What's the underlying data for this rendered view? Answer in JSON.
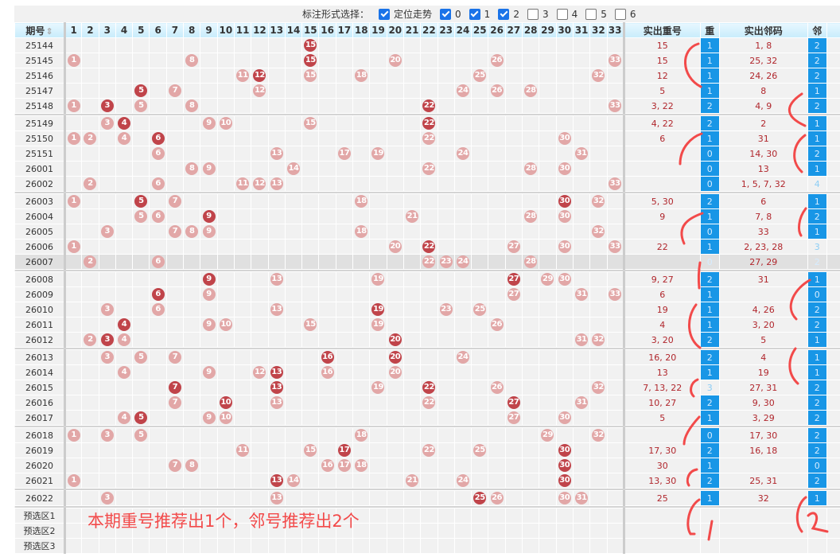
{
  "toolbar": {
    "label": "标注形式选择：",
    "options": [
      {
        "label": "定位走势",
        "checked": true
      },
      {
        "label": "0",
        "checked": true
      },
      {
        "label": "1",
        "checked": true
      },
      {
        "label": "2",
        "checked": true
      },
      {
        "label": "3",
        "checked": false
      },
      {
        "label": "4",
        "checked": false
      },
      {
        "label": "5",
        "checked": false
      },
      {
        "label": "6",
        "checked": false
      }
    ]
  },
  "header": {
    "period": "期号",
    "sort_icon": "sort-updown-icon",
    "numbers": [
      "1",
      "2",
      "3",
      "4",
      "5",
      "6",
      "7",
      "8",
      "9",
      "10",
      "11",
      "12",
      "13",
      "14",
      "15",
      "16",
      "17",
      "18",
      "19",
      "20",
      "21",
      "22",
      "23",
      "24",
      "25",
      "26",
      "27",
      "28",
      "29",
      "30",
      "31",
      "32",
      "33"
    ],
    "repeat_nums": "实出重号",
    "repeat_count": "重",
    "neighbor_nums": "实出邻码",
    "neighbor_count": "邻"
  },
  "groups": [
    [
      {
        "period": "25144",
        "balls": [
          15
        ],
        "dark": [
          15
        ],
        "repeat": "15",
        "rc": "1",
        "neighbor": "1, 8",
        "nc": "2"
      },
      {
        "period": "25145",
        "balls": [
          1,
          8,
          15,
          20,
          26,
          33
        ],
        "dark": [
          15
        ],
        "repeat": "15",
        "rc": "1",
        "neighbor": "25, 32",
        "nc": "2"
      },
      {
        "period": "25146",
        "balls": [
          11,
          12,
          15,
          18,
          25,
          32
        ],
        "dark": [
          12
        ],
        "repeat": "12",
        "rc": "1",
        "neighbor": "24, 26",
        "nc": "2"
      },
      {
        "period": "25147",
        "balls": [
          5,
          7,
          12,
          24,
          26,
          28
        ],
        "dark": [
          5
        ],
        "repeat": "5",
        "rc": "1",
        "neighbor": "8",
        "nc": "1"
      },
      {
        "period": "25148",
        "balls": [
          1,
          3,
          5,
          8,
          22,
          33
        ],
        "dark": [
          3,
          22
        ],
        "repeat": "3, 22",
        "rc": "2",
        "neighbor": "4, 9",
        "nc": "2"
      }
    ],
    [
      {
        "period": "25149",
        "balls": [
          3,
          4,
          9,
          10,
          15,
          22
        ],
        "dark": [
          4,
          22
        ],
        "repeat": "4, 22",
        "rc": "2",
        "neighbor": "2",
        "nc": "1"
      },
      {
        "period": "25150",
        "balls": [
          1,
          2,
          4,
          6,
          22,
          30
        ],
        "dark": [
          6
        ],
        "repeat": "6",
        "rc": "1",
        "neighbor": "31",
        "nc": "1"
      },
      {
        "period": "25151",
        "balls": [
          6,
          13,
          17,
          19,
          24,
          31
        ],
        "dark": [],
        "repeat": "",
        "rc": "0",
        "neighbor": "14, 30",
        "nc": "2"
      },
      {
        "period": "26001",
        "balls": [
          8,
          9,
          14,
          22,
          28,
          30
        ],
        "dark": [],
        "repeat": "",
        "rc": "0",
        "neighbor": "13",
        "nc": "1"
      },
      {
        "period": "26002",
        "balls": [
          2,
          6,
          11,
          12,
          13,
          33
        ],
        "dark": [],
        "repeat": "",
        "rc": "0",
        "neighbor": "1, 5, 7, 32",
        "nc": "4",
        "nc_pale": true
      }
    ],
    [
      {
        "period": "26003",
        "balls": [
          1,
          5,
          7,
          18,
          30,
          32
        ],
        "dark": [
          5,
          30
        ],
        "repeat": "5, 30",
        "rc": "2",
        "neighbor": "6",
        "nc": "1"
      },
      {
        "period": "26004",
        "balls": [
          5,
          6,
          9,
          21,
          28,
          30
        ],
        "dark": [
          9
        ],
        "repeat": "9",
        "rc": "1",
        "neighbor": "7, 8",
        "nc": "2"
      },
      {
        "period": "26005",
        "balls": [
          3,
          7,
          8,
          9,
          18,
          32
        ],
        "dark": [],
        "repeat": "",
        "rc": "0",
        "neighbor": "33",
        "nc": "1"
      },
      {
        "period": "26006",
        "balls": [
          1,
          20,
          22,
          27,
          30,
          33
        ],
        "dark": [
          22
        ],
        "repeat": "22",
        "rc": "1",
        "neighbor": "2, 23, 28",
        "nc": "3",
        "nc_pale": true
      },
      {
        "period": "26007",
        "balls": [
          2,
          6,
          22,
          23,
          24,
          28
        ],
        "dark": [],
        "repeat": "",
        "rc": "0",
        "neighbor": "27, 29",
        "nc": "2",
        "highlight": true
      }
    ],
    [
      {
        "period": "26008",
        "balls": [
          9,
          13,
          19,
          27,
          29,
          30
        ],
        "dark": [
          9,
          27
        ],
        "repeat": "9, 27",
        "rc": "2",
        "neighbor": "31",
        "nc": "1"
      },
      {
        "period": "26009",
        "balls": [
          6,
          9,
          27,
          31,
          33
        ],
        "dark": [
          6
        ],
        "repeat": "6",
        "rc": "1",
        "neighbor": "",
        "nc": "0"
      },
      {
        "period": "26010",
        "balls": [
          3,
          6,
          13,
          19,
          23,
          25
        ],
        "dark": [
          19
        ],
        "repeat": "19",
        "rc": "1",
        "neighbor": "4, 26",
        "nc": "2"
      },
      {
        "period": "26011",
        "balls": [
          4,
          9,
          10,
          15,
          19,
          26
        ],
        "dark": [
          4
        ],
        "repeat": "4",
        "rc": "1",
        "neighbor": "3, 20",
        "nc": "2"
      },
      {
        "period": "26012",
        "balls": [
          2,
          3,
          4,
          20,
          31,
          32
        ],
        "dark": [
          3,
          20
        ],
        "repeat": "3, 20",
        "rc": "2",
        "neighbor": "5",
        "nc": "1"
      }
    ],
    [
      {
        "period": "26013",
        "balls": [
          3,
          5,
          7,
          16,
          20,
          24
        ],
        "dark": [
          16,
          20
        ],
        "repeat": "16, 20",
        "rc": "2",
        "neighbor": "4",
        "nc": "1"
      },
      {
        "period": "26014",
        "balls": [
          4,
          9,
          12,
          13,
          16,
          20
        ],
        "dark": [
          13
        ],
        "repeat": "13",
        "rc": "1",
        "neighbor": "19",
        "nc": "1"
      },
      {
        "period": "26015",
        "balls": [
          7,
          13,
          19,
          22,
          26,
          32
        ],
        "dark": [
          7,
          13,
          22
        ],
        "repeat": "7, 13, 22",
        "rc": "3",
        "rc_pale": true,
        "neighbor": "27, 31",
        "nc": "2"
      },
      {
        "period": "26016",
        "balls": [
          7,
          10,
          13,
          22,
          27,
          31
        ],
        "dark": [
          10,
          27
        ],
        "repeat": "10, 27",
        "rc": "2",
        "neighbor": "9, 30",
        "nc": "2"
      },
      {
        "period": "26017",
        "balls": [
          4,
          5,
          9,
          10,
          27,
          30
        ],
        "dark": [
          5
        ],
        "repeat": "5",
        "rc": "1",
        "neighbor": "3, 29",
        "nc": "2"
      }
    ],
    [
      {
        "period": "26018",
        "balls": [
          1,
          3,
          5,
          18,
          29,
          32
        ],
        "dark": [],
        "repeat": "",
        "rc": "0",
        "neighbor": "17, 30",
        "nc": "2"
      },
      {
        "period": "26019",
        "balls": [
          11,
          15,
          17,
          22,
          25,
          30
        ],
        "dark": [
          17,
          30
        ],
        "repeat": "17, 30",
        "rc": "2",
        "neighbor": "16, 18",
        "nc": "2"
      },
      {
        "period": "26020",
        "balls": [
          7,
          8,
          16,
          17,
          18,
          30
        ],
        "dark": [
          30
        ],
        "repeat": "30",
        "rc": "1",
        "neighbor": "",
        "nc": "0"
      },
      {
        "period": "26021",
        "balls": [
          1,
          13,
          14,
          21,
          24,
          30
        ],
        "dark": [
          13,
          30
        ],
        "repeat": "13, 30",
        "rc": "2",
        "neighbor": "25, 31",
        "nc": "2"
      }
    ],
    [
      {
        "period": "26022",
        "balls": [
          3,
          13,
          25,
          26,
          30,
          31
        ],
        "dark": [
          25
        ],
        "repeat": "25",
        "rc": "1",
        "neighbor": "32",
        "nc": "1"
      }
    ]
  ],
  "preselect": [
    "预选区1",
    "预选区2",
    "预选区3"
  ],
  "annotation_text": "本期重号推荐出1个，邻号推荐出2个",
  "colors": {
    "ball_light": "#e2a7a7",
    "ball_dark": "#c0444a",
    "count_bg": "#1896e6",
    "annotation": "#f24a4a",
    "header_bg": "#c8ecfb"
  }
}
